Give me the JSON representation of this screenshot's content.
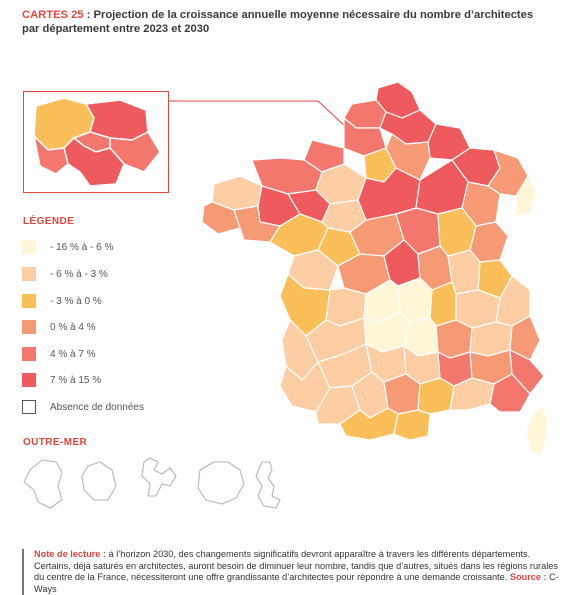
{
  "title": {
    "tag": "CARTES 25",
    "separator": " : ",
    "text": "Projection de la croissance annuelle moyenne nécessaire du nombre d’architectes par département entre 2023 et 2030"
  },
  "legend": {
    "title": "LÉGENDE",
    "items": [
      {
        "label": "- 16 % à - 6 %",
        "color": "#fdf6d7"
      },
      {
        "label": "- 6 % à - 3 %",
        "color": "#fdcda3"
      },
      {
        "label": "- 3 % à 0 %",
        "color": "#fbbf5a"
      },
      {
        "label": "0 % à 4 %",
        "color": "#f69a76"
      },
      {
        "label": "4 % à 7 %",
        "color": "#f3776c"
      },
      {
        "label": "7 % à 15 %",
        "color": "#ee5a5e"
      },
      {
        "label": "Absence de données",
        "color": "#ffffff"
      }
    ]
  },
  "outre_mer": {
    "title": "OUTRE-MER"
  },
  "footnote": {
    "lead": "Note de lecture :",
    "text": " à l’horizon 2030, des changements significatifs devront apparaître à travers les différents départements. Certains, déjà saturés en architectes, auront besoin de diminuer leur nombre, tandis que d’autres, situés dans les régions rurales du centre de la France, nécessiteront une offre grandissante d’architectes pour répondre à une demande croissante. ",
    "source_label": "Source :",
    "source": " C-Ways"
  }
}
